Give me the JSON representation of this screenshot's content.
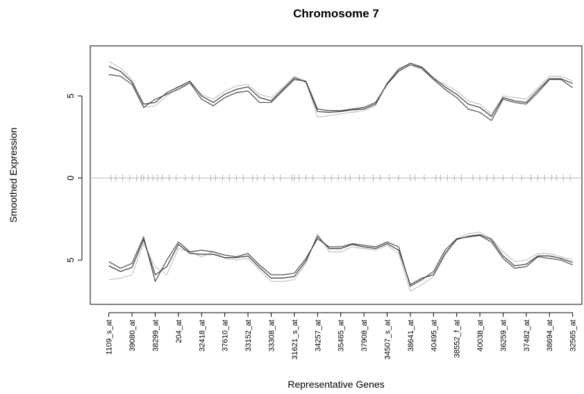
{
  "chart_data": {
    "type": "line",
    "title": "Chromosome 7",
    "xlabel": "Representative Genes",
    "ylabel": "Smoothed Expression",
    "xlim": [
      0.2,
      21.4
    ],
    "ylim": [
      -7.7,
      8.05
    ],
    "xticks": [
      {
        "value": 1,
        "label": "1109_s_at"
      },
      {
        "value": 2,
        "label": "39080_at"
      },
      {
        "value": 3,
        "label": "38299_at"
      },
      {
        "value": 4,
        "label": "204_at"
      },
      {
        "value": 5,
        "label": "32418_at"
      },
      {
        "value": 6,
        "label": "37610_at"
      },
      {
        "value": 7,
        "label": "33152_at"
      },
      {
        "value": 8,
        "label": "33308_at"
      },
      {
        "value": 9,
        "label": "31621_s_at"
      },
      {
        "value": 10,
        "label": "34257_at"
      },
      {
        "value": 11,
        "label": "35465_at"
      },
      {
        "value": 12,
        "label": "37908_at"
      },
      {
        "value": 13,
        "label": "34507_s_at"
      },
      {
        "value": 14,
        "label": "38641_at"
      },
      {
        "value": 15,
        "label": "40495_at"
      },
      {
        "value": 16,
        "label": "38552_f_at"
      },
      {
        "value": 17,
        "label": "40038_at"
      },
      {
        "value": 18,
        "label": "36259_at"
      },
      {
        "value": 19,
        "label": "37482_at"
      },
      {
        "value": 20,
        "label": "38694_at"
      },
      {
        "value": 21,
        "label": "32565_at"
      }
    ],
    "yticks": [
      5,
      0,
      {
        "value": -5,
        "label": "5"
      }
    ],
    "x": [
      1,
      1.5,
      2,
      2.5,
      3,
      3.5,
      4,
      4.5,
      5,
      5.5,
      6,
      6.5,
      7,
      7.5,
      8,
      8.5,
      9,
      9.5,
      10,
      10.5,
      11,
      11.5,
      12,
      12.5,
      13,
      13.5,
      14,
      14.5,
      15,
      15.5,
      16,
      16.5,
      17,
      17.5,
      18,
      18.5,
      19,
      19.5,
      20,
      20.5,
      21
    ],
    "series": [
      {
        "color": "#c8c8c8",
        "values": [
          7.1,
          6.7,
          6.0,
          4.3,
          4.4,
          5.0,
          5.5,
          5.8,
          5.1,
          4.8,
          5.3,
          5.6,
          5.7,
          5.1,
          4.9,
          5.5,
          6.2,
          5.9,
          3.7,
          3.8,
          3.9,
          4.0,
          4.1,
          4.4,
          5.8,
          6.7,
          6.9,
          6.6,
          6.0,
          5.7,
          5.3,
          4.7,
          4.5,
          3.9,
          5.0,
          4.9,
          4.8,
          5.5,
          6.2,
          6.2,
          5.9
        ]
      },
      {
        "color": "#c8c8c8",
        "values": [
          -6.2,
          -6.1,
          -5.9,
          -4.0,
          -5.4,
          -5.9,
          -4.3,
          -4.5,
          -4.8,
          -4.5,
          -4.9,
          -5.0,
          -4.9,
          -5.6,
          -6.3,
          -6.3,
          -6.2,
          -5.2,
          -3.4,
          -4.5,
          -4.5,
          -4.2,
          -4.3,
          -4.4,
          -4.1,
          -4.6,
          -6.9,
          -6.5,
          -6.0,
          -4.7,
          -3.7,
          -3.4,
          -3.3,
          -3.7,
          -4.5,
          -5.1,
          -5.0,
          -4.6,
          -4.6,
          -4.8,
          -5.0
        ]
      },
      {
        "color": "#555555",
        "values": [
          6.3,
          6.2,
          5.7,
          4.3,
          4.8,
          5.1,
          5.4,
          5.8,
          4.8,
          4.4,
          4.9,
          5.2,
          5.3,
          4.6,
          4.6,
          5.3,
          6.0,
          5.9,
          4.2,
          4.1,
          4.1,
          4.2,
          4.3,
          4.6,
          5.7,
          6.5,
          6.9,
          6.7,
          6.0,
          5.4,
          4.9,
          4.2,
          4.0,
          3.5,
          4.8,
          4.6,
          4.5,
          5.2,
          6.0,
          6.0,
          5.5
        ]
      },
      {
        "color": "#555555",
        "values": [
          -5.1,
          -5.5,
          -5.2,
          -3.6,
          -6.3,
          -5.0,
          -3.9,
          -4.5,
          -4.4,
          -4.5,
          -4.7,
          -4.8,
          -4.6,
          -5.3,
          -5.9,
          -5.9,
          -5.8,
          -4.9,
          -3.7,
          -4.2,
          -4.2,
          -4.0,
          -4.1,
          -4.2,
          -3.9,
          -4.2,
          -6.6,
          -6.2,
          -5.7,
          -4.4,
          -3.7,
          -3.6,
          -3.5,
          -3.9,
          -4.9,
          -5.5,
          -5.4,
          -4.8,
          -4.9,
          -5.0,
          -5.3
        ]
      },
      {
        "color": "#444444",
        "values": [
          6.8,
          6.5,
          5.85,
          4.5,
          4.6,
          5.2,
          5.55,
          5.9,
          5.0,
          4.6,
          5.1,
          5.4,
          5.55,
          4.9,
          4.7,
          5.4,
          6.1,
          5.85,
          4.05,
          4.0,
          4.05,
          4.15,
          4.2,
          4.5,
          5.75,
          6.6,
          7.0,
          6.75,
          6.1,
          5.55,
          5.1,
          4.5,
          4.3,
          3.75,
          4.9,
          4.7,
          4.6,
          5.35,
          6.05,
          6.05,
          5.75
        ]
      },
      {
        "color": "#444444",
        "values": [
          -5.35,
          -5.7,
          -5.45,
          -3.75,
          -5.9,
          -5.4,
          -4.05,
          -4.6,
          -4.65,
          -4.65,
          -4.85,
          -4.85,
          -4.75,
          -5.45,
          -6.1,
          -6.1,
          -6.0,
          -5.05,
          -3.55,
          -4.3,
          -4.3,
          -4.05,
          -4.2,
          -4.3,
          -4.0,
          -4.4,
          -6.5,
          -6.1,
          -5.9,
          -4.6,
          -3.75,
          -3.55,
          -3.45,
          -3.75,
          -4.75,
          -5.35,
          -5.25,
          -4.75,
          -4.75,
          -4.9,
          -5.15
        ]
      }
    ],
    "rug": [
      1.1,
      1.3,
      1.6,
      1.9,
      2.2,
      2.4,
      2.5,
      2.7,
      2.9,
      3.1,
      3.3,
      3.6,
      3.9,
      4.3,
      4.6,
      4.9,
      5.4,
      5.6,
      5.9,
      6.2,
      6.5,
      6.8,
      7.2,
      7.4,
      7.7,
      8.1,
      8.4,
      8.9,
      9.0,
      9.2,
      9.5,
      9.8,
      10.3,
      10.6,
      10.9,
      11.2,
      11.4,
      11.8,
      12.0,
      12.4,
      12.7,
      13.1,
      13.5,
      14.0,
      14.2,
      14.6,
      15.1,
      15.3,
      15.6,
      15.9,
      16.2,
      16.7,
      17.0,
      17.3,
      17.6,
      18.0,
      18.4,
      18.8,
      19.2,
      19.5,
      19.8,
      20.1,
      20.3,
      20.6,
      20.9
    ],
    "rug_color": "#b4b4b4"
  }
}
